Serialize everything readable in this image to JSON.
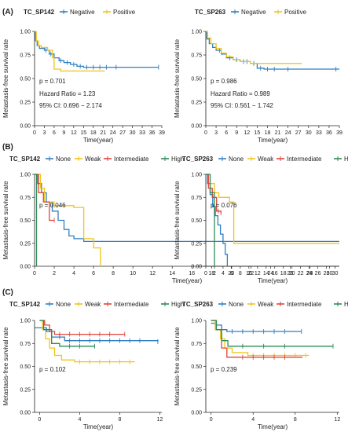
{
  "figure": {
    "colors": {
      "blue": "#2f7fc1",
      "yellow": "#f0c419",
      "red": "#e0453a",
      "green": "#2e8b57",
      "axis": "#222222"
    },
    "panels": [
      {
        "id": "A",
        "label": "(A)"
      },
      {
        "id": "B",
        "label": "(B)"
      },
      {
        "id": "C",
        "label": "(C)"
      }
    ]
  },
  "chart_data": [
    {
      "type": "line",
      "panel": "A",
      "legend_title": "TC_SP142",
      "xlabel": "Time(year)",
      "ylabel": "Metastasis-free survival rate",
      "xlim": [
        0,
        39
      ],
      "ylim": [
        0,
        1
      ],
      "xticks": [
        0,
        3,
        6,
        9,
        12,
        15,
        18,
        21,
        24,
        27,
        30,
        33,
        36,
        39
      ],
      "yticks": [
        "0.00",
        "0.25",
        "0.50",
        "0.75",
        "1.00"
      ],
      "stats": [
        "p = 0.701",
        "Hazard Ratio = 1.23",
        "95% CI: 0.696 − 2.174"
      ],
      "series": [
        {
          "name": "Negative",
          "color": "#2f7fc1",
          "points": [
            [
              0,
              1
            ],
            [
              0.3,
              0.9
            ],
            [
              0.8,
              0.85
            ],
            [
              1.5,
              0.82
            ],
            [
              3,
              0.8
            ],
            [
              4.5,
              0.76
            ],
            [
              6,
              0.72
            ],
            [
              7.5,
              0.69
            ],
            [
              9,
              0.67
            ],
            [
              11,
              0.65
            ],
            [
              13,
              0.63
            ],
            [
              15,
              0.62
            ],
            [
              38,
              0.62
            ]
          ],
          "censor": [
            3.5,
            5,
            8,
            10,
            12,
            14,
            16,
            18,
            20,
            22,
            25,
            38
          ]
        },
        {
          "name": "Positive",
          "color": "#f0c419",
          "points": [
            [
              0,
              1
            ],
            [
              0.5,
              0.9
            ],
            [
              1.2,
              0.85
            ],
            [
              2,
              0.83
            ],
            [
              4,
              0.8
            ],
            [
              5.5,
              0.72
            ],
            [
              6,
              0.6
            ],
            [
              8,
              0.58
            ],
            [
              21.5,
              0.58
            ]
          ],
          "censor": []
        }
      ]
    },
    {
      "type": "line",
      "panel": "A",
      "legend_title": "TC_SP263",
      "xlabel": "Time(year)",
      "ylabel": "Metastasis-free survival rate",
      "xlim": [
        0,
        39
      ],
      "ylim": [
        0,
        1
      ],
      "xticks": [
        0,
        3,
        6,
        9,
        12,
        15,
        18,
        21,
        24,
        27,
        30,
        33,
        36,
        39
      ],
      "yticks": [
        "0.00",
        "0.25",
        "0.50",
        "0.75",
        "1.00"
      ],
      "stats": [
        "p = 0.986",
        "Hazard Ratio = 0.989",
        "95% CI: 0.561 − 1.742"
      ],
      "series": [
        {
          "name": "Negative",
          "color": "#2f7fc1",
          "points": [
            [
              0,
              1
            ],
            [
              0.3,
              0.92
            ],
            [
              1,
              0.87
            ],
            [
              2,
              0.83
            ],
            [
              3,
              0.8
            ],
            [
              4.5,
              0.76
            ],
            [
              6,
              0.72
            ],
            [
              8,
              0.7
            ],
            [
              10,
              0.68
            ],
            [
              13,
              0.66
            ],
            [
              15,
              0.61
            ],
            [
              17,
              0.6
            ],
            [
              39,
              0.6
            ]
          ],
          "censor": [
            4,
            7,
            9,
            11,
            12,
            14,
            16,
            18,
            20,
            24,
            38
          ]
        },
        {
          "name": "Positive",
          "color": "#f0c419",
          "points": [
            [
              0,
              1
            ],
            [
              0.5,
              0.93
            ],
            [
              1.5,
              0.87
            ],
            [
              3,
              0.82
            ],
            [
              4.5,
              0.77
            ],
            [
              6,
              0.73
            ],
            [
              8,
              0.7
            ],
            [
              10,
              0.68
            ],
            [
              13,
              0.66
            ],
            [
              28,
              0.66
            ]
          ],
          "censor": []
        }
      ]
    },
    {
      "type": "line",
      "panel": "B",
      "legend_title": "TC_SP142",
      "xlabel": "Time(year)",
      "ylabel": "Metastasis-free survival rate",
      "xlim": [
        0,
        31
      ],
      "ylim": [
        0,
        1
      ],
      "xticks": [
        0,
        2,
        4,
        6,
        8,
        10,
        12,
        14,
        16,
        18,
        20,
        22,
        24,
        26,
        28,
        30
      ],
      "yticks": [
        "0.00",
        "0.25",
        "0.50",
        "0.75",
        "1.00"
      ],
      "stats": [
        "p = 0.046"
      ],
      "series": [
        {
          "name": "None",
          "color": "#2f7fc1",
          "points": [
            [
              0,
              1
            ],
            [
              0.3,
              0.9
            ],
            [
              0.7,
              0.8
            ],
            [
              1.2,
              0.7
            ],
            [
              1.8,
              0.6
            ],
            [
              2.4,
              0.5
            ],
            [
              3,
              0.4
            ],
            [
              3.5,
              0.33
            ],
            [
              4,
              0.3
            ],
            [
              5,
              0.27
            ],
            [
              31,
              0.27
            ]
          ],
          "censor": []
        },
        {
          "name": "Weak",
          "color": "#f0c419",
          "points": [
            [
              0,
              1
            ],
            [
              0.6,
              0.85
            ],
            [
              1,
              0.7
            ],
            [
              2,
              0.66
            ],
            [
              4,
              0.64
            ],
            [
              5,
              0.3
            ],
            [
              6,
              0.2
            ],
            [
              6.7,
              0
            ]
          ],
          "censor": []
        },
        {
          "name": "Intermediate",
          "color": "#e0453a",
          "points": [
            [
              0,
              1
            ],
            [
              0.4,
              0.8
            ],
            [
              0.9,
              0.7
            ],
            [
              1.5,
              0.5
            ],
            [
              2,
              0.5
            ]
          ],
          "censor": [
            2
          ]
        },
        {
          "name": "High",
          "color": "#2e8b57",
          "points": [
            [
              0,
              1
            ],
            [
              0.2,
              1
            ],
            [
              0.2,
              0
            ]
          ],
          "censor": []
        }
      ]
    },
    {
      "type": "line",
      "panel": "B",
      "legend_title": "TC_SP263",
      "xlabel": "Time(year)",
      "ylabel": "Metastasis-free survival rate",
      "xlim": [
        0,
        31
      ],
      "ylim": [
        0,
        1
      ],
      "xticks": [
        0,
        2,
        4,
        6,
        8,
        10,
        12,
        14,
        16,
        18,
        20,
        22,
        24,
        26,
        28,
        30
      ],
      "yticks": [
        "0.00",
        "0.25",
        "0.50",
        "0.75",
        "1.00"
      ],
      "stats": [
        "p = 0.076"
      ],
      "series": [
        {
          "name": "None",
          "color": "#2f7fc1",
          "points": [
            [
              0,
              1
            ],
            [
              0.4,
              0.9
            ],
            [
              1,
              0.78
            ],
            [
              1.6,
              0.65
            ],
            [
              2.2,
              0.55
            ],
            [
              2.8,
              0.45
            ],
            [
              3.4,
              0.35
            ],
            [
              4,
              0.25
            ],
            [
              4.5,
              0.13
            ],
            [
              5,
              0
            ]
          ],
          "censor": []
        },
        {
          "name": "Weak",
          "color": "#f0c419",
          "points": [
            [
              0,
              1
            ],
            [
              1,
              0.9
            ],
            [
              2,
              0.8
            ],
            [
              3,
              0.75
            ],
            [
              5.5,
              0.7
            ],
            [
              6.5,
              0.25
            ],
            [
              31,
              0.25
            ]
          ],
          "censor": []
        },
        {
          "name": "Intermediate",
          "color": "#e0453a",
          "points": [
            [
              0,
              1
            ],
            [
              0.6,
              0.85
            ],
            [
              1.5,
              0.75
            ],
            [
              2.5,
              0.6
            ],
            [
              3.5,
              0.58
            ]
          ],
          "censor": [
            2.9,
            3.5
          ]
        },
        {
          "name": "High",
          "color": "#2e8b57",
          "points": [
            [
              0,
              1
            ],
            [
              1,
              0.8
            ],
            [
              2,
              0.7
            ],
            [
              2,
              0
            ]
          ],
          "censor": []
        }
      ]
    },
    {
      "type": "line",
      "panel": "C",
      "legend_title": "TC_SP142",
      "xlabel": "Time(year)",
      "ylabel": "Metastasis-free survival rate",
      "xlim": [
        -0.5,
        12.2
      ],
      "ylim": [
        0,
        1
      ],
      "xticks": [
        0,
        4,
        8,
        12
      ],
      "yticks": [
        "0.00",
        "0.25",
        "0.50",
        "0.75",
        "1.00"
      ],
      "stats": [
        "p = 0.102"
      ],
      "series": [
        {
          "name": "None",
          "color": "#2f7fc1",
          "points": [
            [
              -0.5,
              0.92
            ],
            [
              0.3,
              0.92
            ],
            [
              0.7,
              0.88
            ],
            [
              1.2,
              0.82
            ],
            [
              2.5,
              0.78
            ],
            [
              11.8,
              0.77
            ]
          ],
          "censor": [
            2,
            3,
            4,
            5,
            6,
            7,
            8,
            9,
            10,
            11.8
          ]
        },
        {
          "name": "Weak",
          "color": "#f0c419",
          "points": [
            [
              0,
              1
            ],
            [
              0.3,
              0.9
            ],
            [
              0.6,
              0.8
            ],
            [
              1,
              0.7
            ],
            [
              1.5,
              0.62
            ],
            [
              2.2,
              0.57
            ],
            [
              3.5,
              0.55
            ],
            [
              9.5,
              0.55
            ]
          ],
          "censor": [
            4,
            5,
            6,
            7,
            8,
            9
          ]
        },
        {
          "name": "Intermediate",
          "color": "#e0453a",
          "points": [
            [
              0,
              1
            ],
            [
              0.5,
              0.95
            ],
            [
              1,
              0.88
            ],
            [
              1.5,
              0.85
            ],
            [
              8.5,
              0.85
            ]
          ],
          "censor": [
            2,
            3,
            4,
            5,
            6,
            7,
            8.5
          ]
        },
        {
          "name": "High",
          "color": "#2e8b57",
          "points": [
            [
              0,
              1
            ],
            [
              0.4,
              0.9
            ],
            [
              1.2,
              0.75
            ],
            [
              2,
              0.72
            ],
            [
              5.5,
              0.72
            ]
          ],
          "censor": [
            3,
            4,
            5.5
          ]
        }
      ]
    },
    {
      "type": "line",
      "panel": "C",
      "legend_title": "TC_SP263",
      "xlabel": "Time(year)",
      "ylabel": "Metastasis-free survival rate",
      "xlim": [
        -0.5,
        12.2
      ],
      "ylim": [
        0,
        1
      ],
      "xticks": [
        0,
        4,
        8,
        12
      ],
      "yticks": [
        "0.00",
        "0.25",
        "0.50",
        "0.75",
        "1.00"
      ],
      "stats": [
        "p = 0.239"
      ],
      "series": [
        {
          "name": "None",
          "color": "#2f7fc1",
          "points": [
            [
              0,
              0.97
            ],
            [
              0.5,
              0.95
            ],
            [
              1,
              0.9
            ],
            [
              1.5,
              0.88
            ],
            [
              8.6,
              0.88
            ]
          ],
          "censor": [
            2,
            3,
            4,
            5,
            6,
            7,
            8.6
          ]
        },
        {
          "name": "Weak",
          "color": "#f0c419",
          "points": [
            [
              0,
              1
            ],
            [
              0.4,
              0.9
            ],
            [
              0.9,
              0.8
            ],
            [
              1.3,
              0.7
            ],
            [
              2,
              0.65
            ],
            [
              3.5,
              0.62
            ],
            [
              9.3,
              0.62
            ]
          ],
          "censor": [
            4,
            5,
            6,
            7,
            8,
            9
          ]
        },
        {
          "name": "Intermediate",
          "color": "#e0453a",
          "points": [
            [
              0,
              1
            ],
            [
              0.5,
              0.9
            ],
            [
              1,
              0.7
            ],
            [
              1.5,
              0.6
            ],
            [
              8.7,
              0.6
            ]
          ],
          "censor": [
            3,
            4,
            5,
            6,
            7
          ]
        },
        {
          "name": "High",
          "color": "#2e8b57",
          "points": [
            [
              0,
              1
            ],
            [
              0.5,
              0.9
            ],
            [
              1,
              0.78
            ],
            [
              1.6,
              0.72
            ],
            [
              11.6,
              0.72
            ]
          ],
          "censor": [
            3,
            5,
            7,
            11.6
          ]
        }
      ]
    }
  ]
}
